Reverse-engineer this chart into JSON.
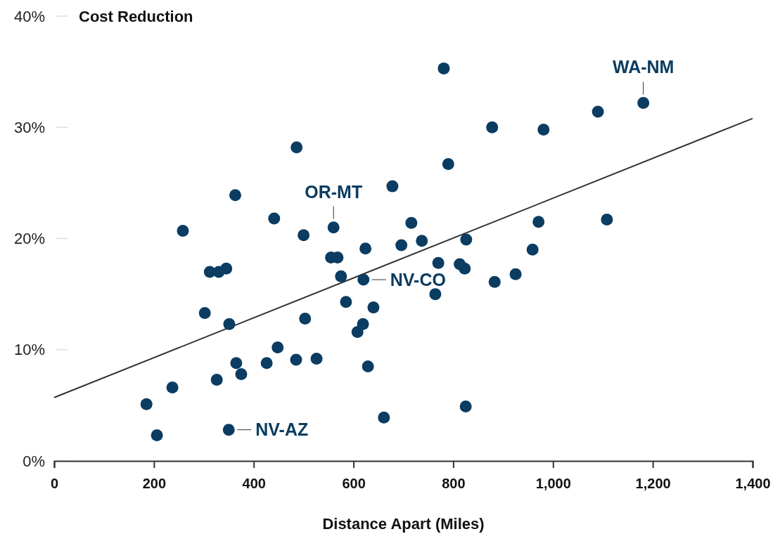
{
  "chart_data": {
    "type": "scatter",
    "ylabel": "Cost Reduction",
    "xlabel": "Distance Apart (Miles)",
    "xlim": [
      0,
      1400
    ],
    "ylim": [
      0,
      40
    ],
    "xticks": [
      0,
      200,
      400,
      600,
      800,
      {
        "value": 1000,
        "label": "1,000"
      },
      {
        "value": 1200,
        "label": "1,200"
      },
      {
        "value": 1400,
        "label": "1,400"
      }
    ],
    "yticks": [
      {
        "value": 0,
        "label": "0%"
      },
      {
        "value": 10,
        "label": "10%"
      },
      {
        "value": 20,
        "label": "20%"
      },
      {
        "value": 30,
        "label": "30%"
      },
      {
        "value": 40,
        "label": "40%"
      }
    ],
    "grid": false,
    "marker": "circle",
    "series": [
      {
        "color": "#0b3c61",
        "x": [
          185,
          206,
          237,
          258,
          302,
          312,
          326,
          330,
          345,
          350,
          351,
          363,
          365,
          375,
          426,
          441,
          448,
          485,
          486,
          500,
          503,
          526,
          560,
          555,
          568,
          575,
          585,
          608,
          619,
          620,
          624,
          629,
          640,
          661,
          678,
          696,
          716,
          737,
          764,
          770,
          781,
          790,
          813,
          823,
          825,
          826,
          878,
          883,
          925,
          959,
          971,
          981,
          1090,
          1108,
          1181
        ],
        "values": [
          5.1,
          2.3,
          6.6,
          20.7,
          13.3,
          17.0,
          7.3,
          17.0,
          17.3,
          2.8,
          12.3,
          23.9,
          8.8,
          7.8,
          8.8,
          21.8,
          10.2,
          9.1,
          28.2,
          20.3,
          12.8,
          9.2,
          21.0,
          18.3,
          18.3,
          16.6,
          14.3,
          11.6,
          12.3,
          16.3,
          19.1,
          8.5,
          13.8,
          3.9,
          24.7,
          19.4,
          21.4,
          19.8,
          15.0,
          17.8,
          35.3,
          26.7,
          17.7,
          17.3,
          4.9,
          19.9,
          30.0,
          16.1,
          16.8,
          19.0,
          21.5,
          29.8,
          31.4,
          21.7,
          32.2
        ]
      },
      {
        "type": "line",
        "color": "#333333",
        "x": [
          0,
          1400
        ],
        "values": [
          5.7,
          30.8
        ],
        "line_style": "solid",
        "marker": "none"
      }
    ],
    "annotations": [
      {
        "text": "WA-NM",
        "x": 1181,
        "y": 32.2
      },
      {
        "text": "OR-MT",
        "x": 560,
        "y": 21.0
      },
      {
        "text": "NV-CO",
        "x": 620,
        "y": 16.3
      },
      {
        "text": "NV-AZ",
        "x": 350,
        "y": 2.8
      }
    ]
  }
}
